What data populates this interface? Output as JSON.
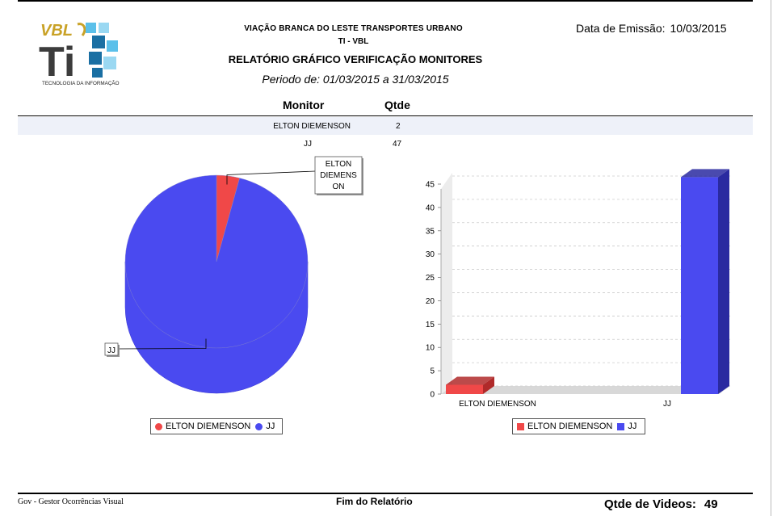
{
  "header": {
    "logo": {
      "brand": "VBL",
      "mark": "Ti",
      "tagline": "TECNOLOGIA DA INFORMAÇÃO"
    },
    "company": "VIAÇÃO BRANCA DO LESTE TRANSPORTES URBANO",
    "department": "TI - VBL",
    "title": "RELATÓRIO GRÁFICO VERIFICAÇÃO MONITORES",
    "period": "Periodo de: 01/03/2015 a 31/03/2015",
    "issue_label": "Data de Emissão:",
    "issue_date": "10/03/2015"
  },
  "table": {
    "columns": [
      "Monitor",
      "Qtde"
    ],
    "rows": [
      {
        "monitor": "ELTON DIEMENSON",
        "qtde": "2"
      },
      {
        "monitor": "JJ",
        "qtde": "47"
      }
    ]
  },
  "colors": {
    "elton": "#f04848",
    "jj": "#4a4af0",
    "elton_dark": "#b02a2a",
    "jj_dark": "#2a2aa0"
  },
  "chart_data": [
    {
      "type": "pie",
      "categories": [
        "ELTON DIEMENSON",
        "JJ"
      ],
      "values": [
        2,
        47
      ],
      "slice_labels": [
        "ELTON\nDIEMENS\nON",
        "JJ"
      ],
      "legend": [
        "ELTON DIEMENSON",
        "JJ"
      ],
      "legend_position": "bottom",
      "three_d": true
    },
    {
      "type": "bar",
      "categories": [
        "ELTON DIEMENSON",
        "JJ"
      ],
      "values": [
        2,
        47
      ],
      "ylim": [
        0,
        45
      ],
      "yticks": [
        0,
        5,
        10,
        15,
        20,
        25,
        30,
        35,
        40,
        45
      ],
      "grid": true,
      "legend": [
        "ELTON DIEMENSON",
        "JJ"
      ],
      "legend_position": "bottom",
      "three_d": true
    }
  ],
  "footer": {
    "left": "Gov - Gestor Ocorrências Visual",
    "center": "Fim do Relatório",
    "total_label": "Qtde de Videos:",
    "total_value": "49"
  }
}
